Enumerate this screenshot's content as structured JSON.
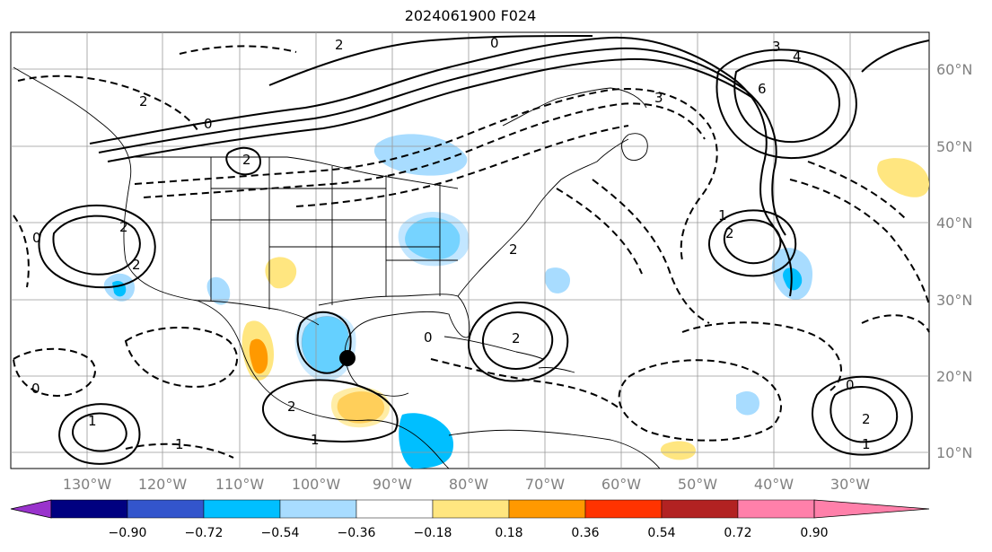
{
  "title": "2024061900 F024",
  "colorbar": {
    "ticks": [
      "−0.90",
      "−0.72",
      "−0.54",
      "−0.36",
      "−0.18",
      "0.18",
      "0.36",
      "0.54",
      "0.72",
      "0.90"
    ],
    "colors": [
      "#9933cc",
      "#000080",
      "#3355cc",
      "#00bfff",
      "#a8dcff",
      "#ffffff",
      "#ffe680",
      "#ff9900",
      "#ff3300",
      "#b22222",
      "#ff80aa"
    ],
    "extend": "both"
  },
  "axes": {
    "lon_labels": [
      "130°W",
      "120°W",
      "110°W",
      "100°W",
      "90°W",
      "80°W",
      "70°W",
      "60°W",
      "50°W",
      "40°W",
      "30°W"
    ],
    "lat_labels": [
      "60°N",
      "50°N",
      "40°N",
      "30°N",
      "20°N",
      "10°N"
    ]
  },
  "contour_labels": [
    "2",
    "0",
    "3",
    "4",
    "6",
    "2",
    "0",
    "2",
    "2",
    "0",
    "2",
    "1",
    "2",
    "0",
    "1",
    "2",
    "1",
    "0",
    "2",
    "1",
    "0",
    "2",
    "1",
    "3",
    "2"
  ],
  "marker": "storm-center-dot"
}
